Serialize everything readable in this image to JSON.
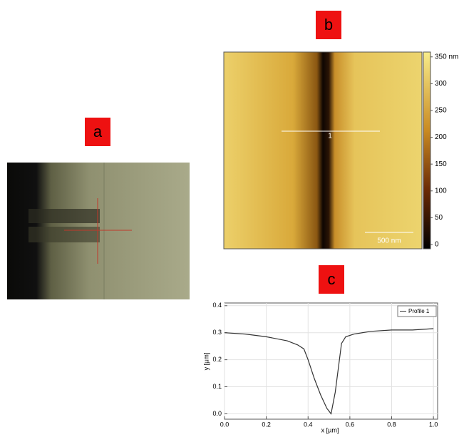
{
  "panels": {
    "a": "a",
    "b": "b",
    "c": "c"
  },
  "afm": {
    "profile_label": "1",
    "scale_bar": "500 nm",
    "colorbar": {
      "lim": [
        -8,
        359
      ],
      "ticks": [
        {
          "value": 350,
          "label": "350 nm"
        },
        300,
        250,
        200,
        150,
        100,
        50,
        0
      ]
    }
  },
  "chart_data": {
    "type": "line",
    "xlabel": "x [µm]",
    "ylabel": "y [µm]",
    "xlim": [
      0,
      1.02
    ],
    "ylim": [
      -0.02,
      0.41
    ],
    "xticks": [
      {
        "value": 0,
        "label": "0.0"
      },
      0.2,
      0.4,
      0.6,
      0.8,
      {
        "value": 1,
        "label": "1.0"
      }
    ],
    "yticks": [
      {
        "value": 0,
        "label": "0.0"
      },
      0.1,
      0.2,
      0.3,
      0.4
    ],
    "grid": true,
    "legend": "upper right",
    "x": [
      0.0,
      0.1,
      0.2,
      0.3,
      0.35,
      0.38,
      0.4,
      0.43,
      0.46,
      0.49,
      0.51,
      0.53,
      0.55,
      0.56,
      0.58,
      0.62,
      0.7,
      0.8,
      0.9,
      1.0
    ],
    "series": [
      {
        "name": "Profile 1",
        "color": "#333333",
        "values": [
          0.3,
          0.295,
          0.285,
          0.27,
          0.255,
          0.24,
          0.2,
          0.13,
          0.07,
          0.02,
          0.0,
          0.08,
          0.2,
          0.26,
          0.285,
          0.295,
          0.305,
          0.31,
          0.31,
          0.315
        ]
      }
    ]
  }
}
